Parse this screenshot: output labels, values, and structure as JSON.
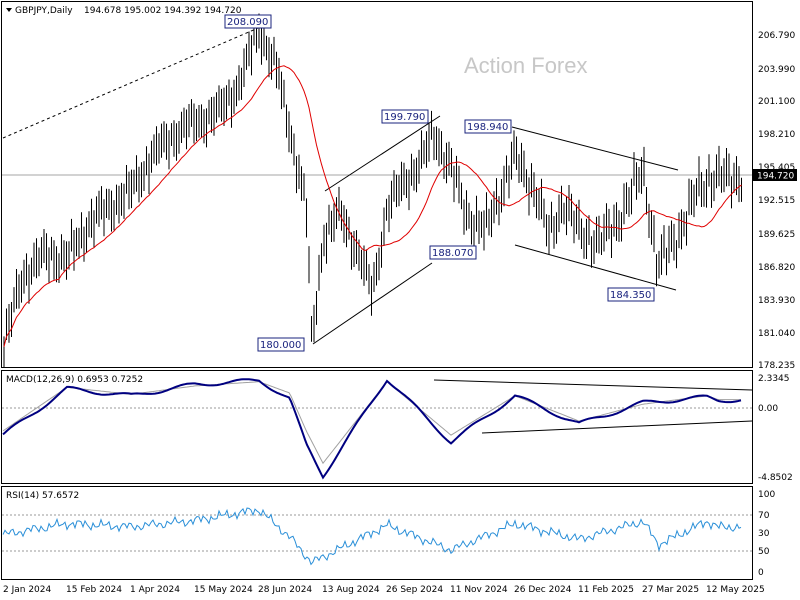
{
  "header": {
    "symbol": "GBPJPY,Daily",
    "ohlc": "194.678 195.002 194.392 194.720"
  },
  "watermark": "Action Forex",
  "colors": {
    "price": "#000000",
    "ma": "#e00000",
    "macd": "#000080",
    "signal": "#a0a0a0",
    "rsi": "#2a8fd8",
    "trendline": "#000000"
  },
  "chart_data": [
    {
      "type": "line",
      "panel": "price",
      "title": "GBPJPY,Daily",
      "ylim": [
        178.235,
        208.95
      ],
      "y_ticks": [
        "206.790",
        "203.990",
        "201.100",
        "198.210",
        "195.405",
        "192.515",
        "189.625",
        "186.820",
        "183.930",
        "181.040",
        "178.235"
      ],
      "x_ticks": [
        "2 Jan 2024",
        "15 Feb 2024",
        "1 Apr 2024",
        "15 May 2024",
        "28 Jun 2024",
        "13 Aug 2024",
        "26 Sep 2024",
        "11 Nov 2024",
        "26 Dec 2024",
        "11 Feb 2025",
        "27 Mar 2025",
        "12 May 2025"
      ],
      "current_price": "194.720",
      "series": [
        {
          "x": [
            "2 Jan 2024",
            "15 Jan 2024",
            "1 Feb 2024",
            "15 Feb 2024",
            "1 Mar 2024",
            "15 Mar 2024",
            "1 Apr 2024",
            "15 Apr 2024",
            "1 May 2024",
            "15 May 2024",
            "1 Jun 2024",
            "15 Jun 2024",
            "28 Jun 2024",
            "11 Jul 2024",
            "20 Jul 2024",
            "1 Aug 2024",
            "5 Aug 2024",
            "13 Aug 2024",
            "25 Aug 2024",
            "5 Sep 2024",
            "16 Sep 2024",
            "26 Sep 2024",
            "10 Oct 2024",
            "20 Oct 2024",
            "30 Oct 2024",
            "11 Nov 2024",
            "22 Nov 2024",
            "5 Dec 2024",
            "16 Dec 2024",
            "26 Dec 2024",
            "10 Jan 2025",
            "20 Jan 2025",
            "30 Jan 2025",
            "11 Feb 2025",
            "25 Feb 2025",
            "10 Mar 2025",
            "20 Mar 2025",
            "27 Mar 2025",
            "7 Apr 2025",
            "11 Apr 2025",
            "25 Apr 2025",
            "5 May 2025",
            "12 May 2025",
            "20 May 2025"
          ],
          "values": [
            179.5,
            186.0,
            188.0,
            187.5,
            190.5,
            192.0,
            193.5,
            196.5,
            198.5,
            199.5,
            200.5,
            203.0,
            207.8,
            204.0,
            199.0,
            192.0,
            180.0,
            189.5,
            191.5,
            188.5,
            184.5,
            192.0,
            194.5,
            196.0,
            198.5,
            195.5,
            191.5,
            190.0,
            193.5,
            196.5,
            193.5,
            189.5,
            192.5,
            190.0,
            189.0,
            191.0,
            193.5,
            195.5,
            186.5,
            187.8,
            190.5,
            193.5,
            194.5,
            194.72
          ]
        }
      ],
      "annotations": [
        "208.090",
        "199.790",
        "198.940",
        "188.070",
        "184.350",
        "180.000"
      ]
    },
    {
      "type": "line",
      "panel": "macd",
      "title": "MACD(12,26,9) 0.6953 0.7252",
      "ylim": [
        -4.8502,
        2.3345
      ],
      "y_ticks": [
        "2.3345",
        "0.00",
        "-4.8502"
      ],
      "series": [
        {
          "x": [
            "2 Jan 2024",
            "15 Feb 2024",
            "1 Apr 2024",
            "15 May 2024",
            "28 Jun 2024",
            "20 Jul 2024",
            "1 Aug 2024",
            "13 Aug 2024",
            "26 Sep 2024",
            "11 Nov 2024",
            "26 Dec 2024",
            "11 Feb 2025",
            "27 Mar 2025",
            "12 May 2025",
            "20 May 2025"
          ],
          "values": [
            -1.8,
            1.5,
            1.0,
            1.8,
            2.1,
            0.8,
            -2.5,
            -4.7,
            2.2,
            -2.3,
            1.0,
            -1.0,
            0.5,
            0.9,
            0.6953
          ]
        },
        {
          "x": [
            "2 Jan 2024",
            "15 Feb 2024",
            "1 Apr 2024",
            "15 May 2024",
            "28 Jun 2024",
            "20 Jul 2024",
            "1 Aug 2024",
            "13 Aug 2024",
            "26 Sep 2024",
            "11 Nov 2024",
            "26 Dec 2024",
            "11 Feb 2025",
            "27 Mar 2025",
            "12 May 2025",
            "20 May 2025"
          ],
          "values": [
            -1.5,
            1.6,
            1.1,
            1.7,
            2.0,
            1.2,
            -1.5,
            -3.8,
            2.0,
            -1.8,
            1.0,
            -0.8,
            0.4,
            1.0,
            0.7252
          ]
        }
      ]
    },
    {
      "type": "line",
      "panel": "rsi",
      "title": "RSI(14) 57.6572",
      "ylim": [
        0,
        100
      ],
      "y_ticks": [
        "100",
        "70",
        "50",
        "30",
        "0"
      ],
      "series": [
        {
          "x": [
            "2 Jan 2024",
            "15 Feb 2024",
            "1 Apr 2024",
            "15 May 2024",
            "28 Jun 2024",
            "20 Jul 2024",
            "5 Aug 2024",
            "26 Sep 2024",
            "11 Nov 2024",
            "26 Dec 2024",
            "11 Feb 2025",
            "27 Mar 2025",
            "7 Apr 2025",
            "12 May 2025",
            "20 May 2025"
          ],
          "values": [
            48,
            62,
            58,
            66,
            80,
            45,
            12,
            60,
            28,
            62,
            42,
            65,
            35,
            65,
            57.6572
          ]
        }
      ]
    }
  ]
}
